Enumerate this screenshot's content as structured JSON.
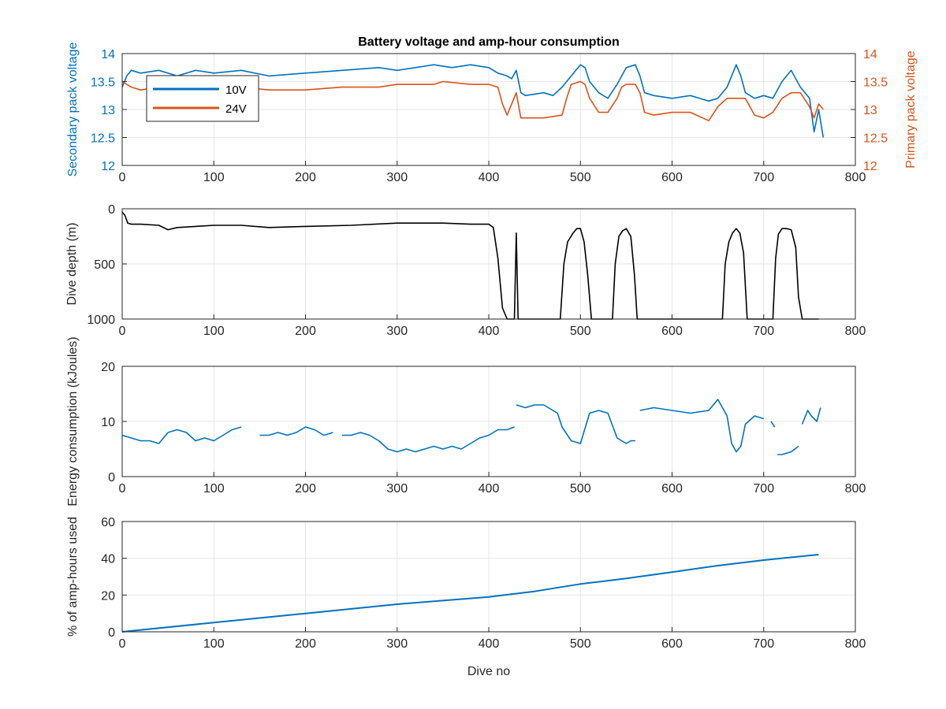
{
  "colors": {
    "v10": "#0072BD",
    "v24": "#D95319",
    "depth": "#000000",
    "energy": "#0072BD",
    "amphours": "#0072BD",
    "grid": "#e6e6e6",
    "axis": "#262626"
  },
  "chart_data": [
    {
      "type": "line",
      "title": "Battery voltage and amp-hour consumption",
      "xlabel": "",
      "ylabel": "Secondary pack voltage",
      "ylabel_right": "Primary pack voltage",
      "xlim": [
        0,
        800
      ],
      "ylim": [
        12,
        14
      ],
      "ylim_right": [
        12,
        14
      ],
      "xticks": [
        0,
        100,
        200,
        300,
        400,
        500,
        600,
        700,
        800
      ],
      "yticks": [
        12,
        12.5,
        13,
        13.5,
        14
      ],
      "grid": true,
      "legend": {
        "position": "top-left",
        "entries": [
          "10V",
          "24V"
        ]
      },
      "series": [
        {
          "name": "10V",
          "axis": "left",
          "x": [
            0,
            5,
            10,
            20,
            40,
            60,
            80,
            100,
            130,
            160,
            200,
            240,
            280,
            300,
            340,
            360,
            380,
            400,
            410,
            420,
            425,
            430,
            435,
            440,
            460,
            470,
            480,
            490,
            500,
            505,
            510,
            520,
            530,
            540,
            550,
            560,
            565,
            570,
            580,
            600,
            620,
            640,
            650,
            660,
            670,
            675,
            680,
            690,
            700,
            710,
            720,
            730,
            740,
            750,
            755,
            760,
            765
          ],
          "y": [
            13.4,
            13.6,
            13.7,
            13.65,
            13.7,
            13.6,
            13.7,
            13.65,
            13.7,
            13.6,
            13.65,
            13.7,
            13.75,
            13.7,
            13.8,
            13.75,
            13.8,
            13.75,
            13.65,
            13.6,
            13.55,
            13.7,
            13.3,
            13.25,
            13.3,
            13.25,
            13.4,
            13.6,
            13.8,
            13.75,
            13.5,
            13.3,
            13.2,
            13.45,
            13.75,
            13.8,
            13.6,
            13.3,
            13.25,
            13.2,
            13.25,
            13.15,
            13.2,
            13.4,
            13.8,
            13.6,
            13.3,
            13.2,
            13.25,
            13.2,
            13.5,
            13.7,
            13.4,
            13.2,
            12.6,
            13.0,
            12.5
          ]
        },
        {
          "name": "24V",
          "axis": "right",
          "x": [
            0,
            5,
            10,
            20,
            40,
            60,
            80,
            100,
            130,
            160,
            200,
            240,
            280,
            300,
            340,
            350,
            380,
            400,
            410,
            415,
            420,
            425,
            430,
            435,
            440,
            460,
            480,
            485,
            490,
            500,
            505,
            510,
            520,
            530,
            540,
            545,
            550,
            560,
            565,
            570,
            580,
            600,
            620,
            640,
            650,
            660,
            670,
            680,
            690,
            700,
            710,
            720,
            730,
            740,
            750,
            755,
            760,
            765
          ],
          "y": [
            13.5,
            13.45,
            13.4,
            13.35,
            13.4,
            13.35,
            13.4,
            13.35,
            13.4,
            13.35,
            13.35,
            13.4,
            13.4,
            13.45,
            13.45,
            13.5,
            13.45,
            13.45,
            13.4,
            13.1,
            12.9,
            13.1,
            13.3,
            12.85,
            12.85,
            12.85,
            12.9,
            13.2,
            13.45,
            13.5,
            13.45,
            13.2,
            12.95,
            12.95,
            13.2,
            13.4,
            13.45,
            13.45,
            13.3,
            12.95,
            12.9,
            12.95,
            12.95,
            12.8,
            13.05,
            13.2,
            13.2,
            13.2,
            12.9,
            12.85,
            12.95,
            13.2,
            13.3,
            13.3,
            13.05,
            12.85,
            13.1,
            13.0
          ]
        }
      ]
    },
    {
      "type": "line",
      "title": "",
      "xlabel": "",
      "ylabel": "Dive depth (m)",
      "xlim": [
        0,
        800
      ],
      "ylim": [
        0,
        1000
      ],
      "y_reversed": true,
      "xticks": [
        0,
        100,
        200,
        300,
        400,
        500,
        600,
        700,
        800
      ],
      "yticks": [
        0,
        500,
        1000
      ],
      "ytick_labels": [
        "0",
        "500",
        "1000"
      ],
      "grid": true,
      "series": [
        {
          "name": "",
          "x": [
            0,
            3,
            6,
            10,
            20,
            40,
            50,
            60,
            80,
            100,
            130,
            160,
            200,
            250,
            300,
            350,
            380,
            400,
            405,
            410,
            415,
            420,
            428,
            430,
            432,
            435,
            440,
            460,
            478,
            482,
            486,
            492,
            496,
            500,
            504,
            508,
            512,
            520,
            535,
            538,
            542,
            546,
            550,
            555,
            559,
            562,
            570,
            600,
            655,
            658,
            662,
            666,
            670,
            674,
            678,
            682,
            690,
            710,
            713,
            716,
            720,
            725,
            730,
            735,
            738,
            742,
            760
          ],
          "y": [
            30,
            60,
            130,
            140,
            140,
            150,
            190,
            170,
            160,
            150,
            150,
            170,
            160,
            150,
            130,
            130,
            140,
            140,
            170,
            450,
            900,
            1000,
            1000,
            220,
            1000,
            1000,
            1000,
            1000,
            1000,
            500,
            300,
            220,
            180,
            180,
            300,
            600,
            1000,
            1000,
            1000,
            500,
            250,
            200,
            180,
            250,
            600,
            1000,
            1000,
            1000,
            1000,
            500,
            300,
            220,
            180,
            220,
            400,
            1000,
            1000,
            1000,
            450,
            230,
            180,
            180,
            190,
            350,
            800,
            1000,
            1000
          ]
        }
      ]
    },
    {
      "type": "line",
      "title": "",
      "xlabel": "",
      "ylabel": "Energy consumption (kJoules)",
      "xlim": [
        0,
        800
      ],
      "ylim": [
        0,
        20
      ],
      "xticks": [
        0,
        100,
        200,
        300,
        400,
        500,
        600,
        700,
        800
      ],
      "yticks": [
        0,
        10,
        20
      ],
      "grid": true,
      "series": [
        {
          "name": "",
          "segments": [
            {
              "x": [
                0,
                10,
                20,
                30,
                40,
                50,
                60,
                70,
                80,
                90,
                100,
                110,
                120,
                130
              ],
              "y": [
                7.5,
                7.0,
                6.5,
                6.5,
                6.0,
                8.0,
                8.5,
                8.0,
                6.5,
                7.0,
                6.5,
                7.5,
                8.5,
                9.0
              ]
            },
            {
              "x": [
                150,
                160,
                170,
                180,
                190,
                200,
                210,
                220,
                230
              ],
              "y": [
                7.5,
                7.5,
                8.0,
                7.5,
                8.0,
                9.0,
                8.5,
                7.5,
                8.0
              ]
            },
            {
              "x": [
                240,
                250,
                260,
                270,
                280,
                290,
                300,
                310,
                320,
                330,
                340,
                350,
                360,
                370,
                380,
                390,
                400,
                410,
                420,
                428
              ],
              "y": [
                7.5,
                7.5,
                8.0,
                7.5,
                6.5,
                5.0,
                4.5,
                5.0,
                4.5,
                5.0,
                5.5,
                5.0,
                5.5,
                5.0,
                6.0,
                7.0,
                7.5,
                8.5,
                8.5,
                9.0
              ]
            },
            {
              "x": [
                430,
                440,
                450,
                460,
                470,
                475,
                480,
                490,
                500,
                510,
                520,
                530,
                540,
                550,
                555,
                560
              ],
              "y": [
                13.0,
                12.5,
                13.0,
                13.0,
                12.0,
                11.5,
                9.0,
                6.5,
                6.0,
                11.5,
                12.0,
                11.5,
                7.0,
                6.0,
                6.5,
                6.5
              ]
            },
            {
              "x": [
                565,
                580,
                600,
                620,
                640,
                650,
                660,
                665,
                670,
                675,
                680,
                690,
                700
              ],
              "y": [
                12.0,
                12.5,
                12.0,
                11.5,
                12.0,
                14.0,
                11.0,
                6.0,
                4.5,
                5.5,
                9.5,
                11.0,
                10.5
              ]
            },
            {
              "x": [
                708,
                712
              ],
              "y": [
                10.0,
                9.0
              ]
            },
            {
              "x": [
                715,
                720,
                730,
                738
              ],
              "y": [
                4.0,
                4.0,
                4.5,
                5.5
              ]
            },
            {
              "x": [
                742,
                748,
                752,
                758,
                762
              ],
              "y": [
                9.5,
                12.0,
                11.0,
                10.0,
                12.5
              ]
            }
          ]
        }
      ]
    },
    {
      "type": "line",
      "title": "",
      "xlabel": "Dive no",
      "ylabel": "% of amp-hours used",
      "xlim": [
        0,
        800
      ],
      "ylim": [
        0,
        60
      ],
      "xticks": [
        0,
        100,
        200,
        300,
        400,
        500,
        600,
        700,
        800
      ],
      "yticks": [
        0,
        20,
        40,
        60
      ],
      "grid": true,
      "series": [
        {
          "name": "",
          "x": [
            0,
            100,
            200,
            300,
            400,
            450,
            500,
            550,
            600,
            650,
            700,
            760
          ],
          "y": [
            0,
            5,
            10,
            15,
            19,
            22,
            26,
            29,
            32.5,
            36,
            39,
            42
          ]
        }
      ]
    }
  ]
}
